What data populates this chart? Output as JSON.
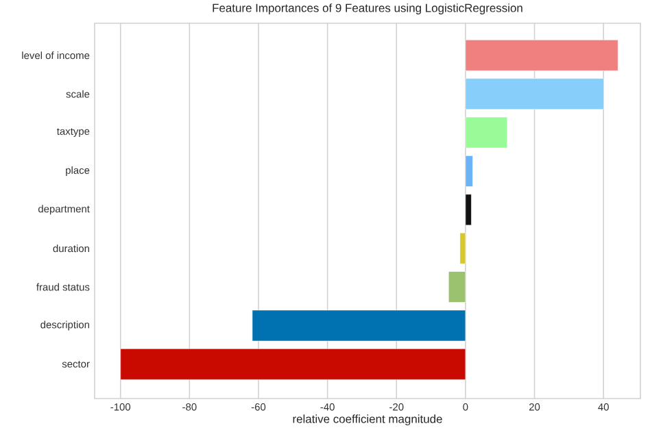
{
  "chart_data": {
    "type": "bar",
    "orientation": "horizontal",
    "title": "Feature Importances of 9 Features using LogisticRegression",
    "xlabel": "relative coefficient magnitude",
    "categories": [
      "level of income",
      "scale",
      "taxtype",
      "place",
      "department",
      "duration",
      "fraud status",
      "description",
      "sector"
    ],
    "values": [
      44.2,
      40.1,
      12.1,
      2.1,
      1.7,
      -1.6,
      -4.9,
      -61.8,
      -100
    ],
    "colors": [
      "#f08080",
      "#87cefa",
      "#98fb98",
      "#6bb3f7",
      "#111111",
      "#d6c72c",
      "#9bc26f",
      "#0072b2",
      "#c90a00"
    ],
    "xlim": [
      -107.5,
      50.7
    ],
    "xticks": [
      -100,
      -80,
      -60,
      -40,
      -20,
      0,
      20,
      40
    ],
    "grid": "x"
  }
}
